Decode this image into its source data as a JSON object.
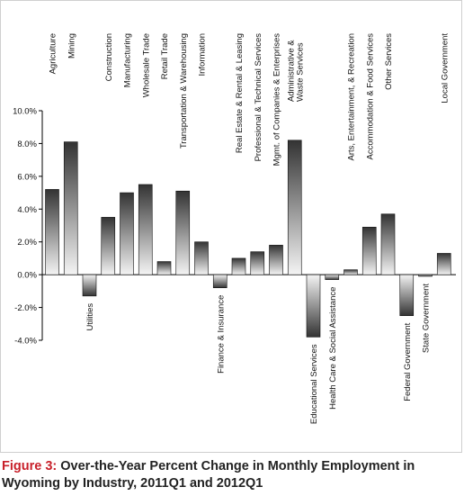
{
  "caption": {
    "figure_label": "Figure 3:",
    "title": "Over-the-Year Percent Change in Monthly Employment in Wyoming by Industry, 2011Q1 and 2012Q1"
  },
  "colors": {
    "caption_label": "#c8202a",
    "positive_bar_top": "#3a3a3a",
    "positive_bar_bottom": "#f2f2f2"
  },
  "chart_data": {
    "type": "bar",
    "title": "",
    "xlabel": "",
    "ylabel": "",
    "ylim": [
      -4,
      10
    ],
    "y_ticks": [
      "10.0%",
      "8.0%",
      "6.0%",
      "4.0%",
      "2.0%",
      "0.0%",
      "-2.0%",
      "-4.0%"
    ],
    "y_tick_values": [
      10,
      8,
      6,
      4,
      2,
      0,
      -2,
      -4
    ],
    "grid": false,
    "legend": "none",
    "categories": [
      "Agriculture",
      "Mining",
      "Utilities",
      "Construction",
      "Manufacturing",
      "Wholesale Trade",
      "Retail Trade",
      "Transportation & Warehousing",
      "Information",
      "Finance & Insurance",
      "Real Estate & Rental & Leasing",
      "Professional & Technical Services",
      "Mgmt. of Companies & Enterprises",
      "Administrative & Waste Services",
      "Educational Services",
      "Health Care & Social Assistance",
      "Arts, Entertainment, & Recreation",
      "Accommodation & Food Services",
      "Other Services",
      "Federal Government",
      "State Government",
      "Local Government"
    ],
    "values": [
      5.2,
      8.1,
      -1.3,
      3.5,
      5.0,
      5.5,
      0.8,
      5.1,
      2.0,
      -0.8,
      1.0,
      1.4,
      1.8,
      8.2,
      -3.8,
      -0.3,
      0.3,
      2.9,
      3.7,
      -2.5,
      -0.1,
      1.3
    ]
  }
}
